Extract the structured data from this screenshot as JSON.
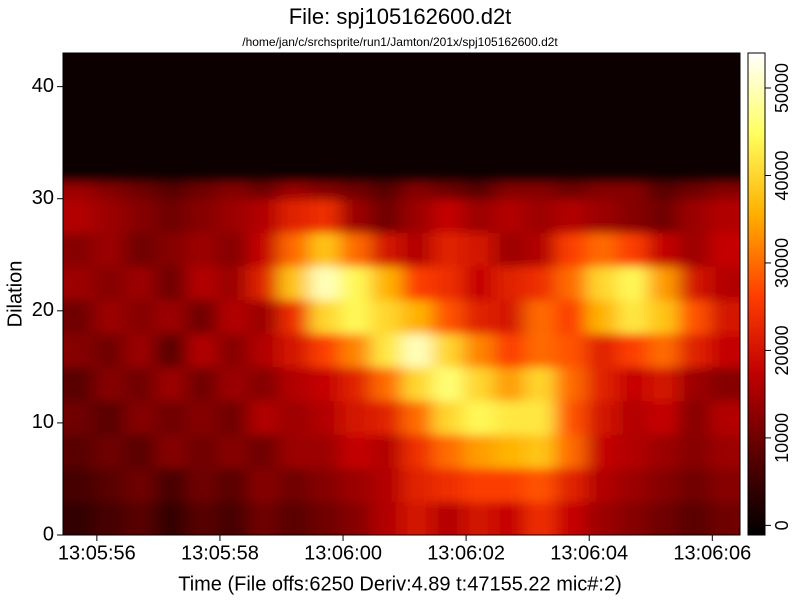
{
  "chart_data": {
    "type": "heatmap",
    "title": "File: spj105162600.d2t",
    "subtitle": "/home/jan/c/srchsprite/run1/Jamton/201x/spj105162600.d2t",
    "xlabel": "Time (File offs:6250 Deriv:4.89 t:47155.22 mic#:2)",
    "ylabel": "Dilation",
    "xlim": [
      47155.45,
      47166.45
    ],
    "ylim": [
      0,
      43
    ],
    "xticks": [
      {
        "value": 47156,
        "label": "13:05:56"
      },
      {
        "value": 47158,
        "label": "13:05:58"
      },
      {
        "value": 47160,
        "label": "13:06:00"
      },
      {
        "value": 47162,
        "label": "13:06:02"
      },
      {
        "value": 47164,
        "label": "13:06:04"
      },
      {
        "value": 47166,
        "label": "13:06:06"
      }
    ],
    "yticks": [
      0,
      10,
      20,
      30,
      40
    ],
    "zlim": [
      -1100,
      54000
    ],
    "zticks": [
      0,
      10000,
      20000,
      30000,
      40000,
      50000
    ],
    "colormap": [
      "#000000",
      "#5a0000",
      "#c00000",
      "#ff4000",
      "#ffb000",
      "#ffff60",
      "#ffffff"
    ],
    "xbins": [
      47155.45,
      47155.95,
      47156.45,
      47156.95,
      47157.45,
      47157.95,
      47158.45,
      47158.95,
      47159.45,
      47159.95,
      47160.45,
      47160.95,
      47161.45,
      47161.95,
      47162.45,
      47162.95,
      47163.45,
      47163.95,
      47164.45,
      47164.95,
      47165.45,
      47165.95,
      47166.45
    ],
    "ybins": [
      0,
      3,
      6,
      9,
      12,
      15,
      18,
      21,
      24,
      27,
      30,
      31.5,
      43
    ],
    "z": [
      [
        4000,
        6000,
        8000,
        4000,
        8000,
        6000,
        10000,
        8000,
        10000,
        12000,
        16000,
        20000,
        16000,
        20000,
        18000,
        24000,
        18000,
        14000,
        12000,
        10000,
        8000,
        10000
      ],
      [
        6000,
        8000,
        10000,
        6000,
        10000,
        8000,
        12000,
        10000,
        12000,
        14000,
        16000,
        22000,
        24000,
        26000,
        26000,
        28000,
        22000,
        16000,
        14000,
        12000,
        10000,
        12000
      ],
      [
        8000,
        10000,
        8000,
        12000,
        10000,
        12000,
        10000,
        14000,
        14000,
        18000,
        16000,
        24000,
        30000,
        34000,
        36000,
        38000,
        30000,
        18000,
        16000,
        14000,
        12000,
        14000
      ],
      [
        10000,
        8000,
        12000,
        10000,
        12000,
        10000,
        16000,
        14000,
        16000,
        20000,
        22000,
        30000,
        40000,
        44000,
        42000,
        42000,
        28000,
        20000,
        16000,
        18000,
        12000,
        16000
      ],
      [
        8000,
        12000,
        10000,
        14000,
        10000,
        14000,
        12000,
        16000,
        18000,
        22000,
        30000,
        40000,
        46000,
        40000,
        34000,
        40000,
        30000,
        22000,
        18000,
        20000,
        14000,
        12000
      ],
      [
        12000,
        10000,
        14000,
        8000,
        16000,
        12000,
        16000,
        20000,
        26000,
        32000,
        42000,
        50000,
        40000,
        32000,
        26000,
        30000,
        28000,
        22000,
        26000,
        30000,
        22000,
        18000
      ],
      [
        10000,
        14000,
        12000,
        14000,
        10000,
        16000,
        14000,
        24000,
        40000,
        44000,
        40000,
        36000,
        28000,
        22000,
        20000,
        30000,
        26000,
        36000,
        42000,
        38000,
        28000,
        20000
      ],
      [
        14000,
        12000,
        14000,
        10000,
        16000,
        14000,
        22000,
        38000,
        50000,
        44000,
        36000,
        26000,
        24000,
        18000,
        22000,
        24000,
        30000,
        40000,
        44000,
        34000,
        20000,
        16000
      ],
      [
        12000,
        14000,
        10000,
        12000,
        14000,
        12000,
        18000,
        30000,
        38000,
        30000,
        20000,
        16000,
        22000,
        20000,
        14000,
        16000,
        26000,
        30000,
        26000,
        18000,
        14000,
        18000
      ],
      [
        16000,
        14000,
        12000,
        10000,
        12000,
        14000,
        16000,
        22000,
        24000,
        14000,
        10000,
        14000,
        18000,
        14000,
        16000,
        14000,
        16000,
        14000,
        12000,
        10000,
        14000,
        16000
      ],
      [
        14000,
        12000,
        10000,
        8000,
        10000,
        12000,
        10000,
        14000,
        12000,
        10000,
        8000,
        12000,
        10000,
        8000,
        12000,
        12000,
        10000,
        12000,
        12000,
        8000,
        10000,
        12000
      ],
      [
        0,
        0,
        0,
        0,
        0,
        0,
        0,
        0,
        0,
        0,
        0,
        0,
        0,
        0,
        0,
        0,
        0,
        0,
        0,
        0,
        0,
        0
      ]
    ]
  }
}
